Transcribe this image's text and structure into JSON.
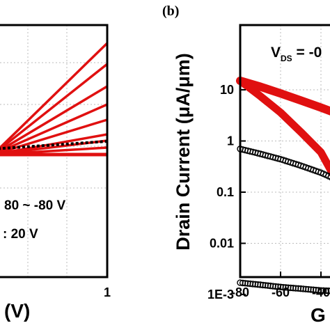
{
  "chart_data": [
    {
      "panel_label": "",
      "type": "line",
      "xlabel": "(V)",
      "ylabel": "",
      "x_ticks": [
        "1"
      ],
      "xlim": [
        0,
        1
      ],
      "ylim": [
        0,
        1
      ],
      "grid": true,
      "annotations": [
        "80 ~ -80 V",
        ": 20 V"
      ],
      "colors": {
        "curves": "#e01010",
        "dotted": "#000000"
      },
      "series": [
        {
          "name": "",
          "x": [
            0,
            1
          ],
          "y": [
            0.9,
            1.62
          ]
        },
        {
          "name": "",
          "x": [
            0,
            1
          ],
          "y": [
            0.9,
            1.38
          ]
        },
        {
          "name": "",
          "x": [
            0,
            1
          ],
          "y": [
            0.9,
            1.15
          ]
        },
        {
          "name": "",
          "x": [
            0,
            1
          ],
          "y": [
            0.9,
            0.96
          ]
        },
        {
          "name": "",
          "x": [
            0,
            1
          ],
          "y": [
            0.9,
            0.73
          ]
        },
        {
          "name": "",
          "x": [
            0,
            1
          ],
          "y": [
            0.9,
            0.56
          ]
        },
        {
          "name": "",
          "x": [
            0,
            1
          ],
          "y": [
            0.9,
            0.42
          ]
        },
        {
          "name": "",
          "x": [
            0,
            1
          ],
          "y": [
            0.9,
            0.29
          ]
        },
        {
          "name": "",
          "x": [
            0,
            1
          ],
          "y": [
            0.9,
            0.1
          ]
        }
      ]
    },
    {
      "panel_label": "(b)",
      "type": "line",
      "xlabel": "G",
      "ylabel": "Drain Current (μA/μm)",
      "vds_label": {
        "main": "V",
        "sub": "DS",
        "rest": " = -0"
      },
      "y_scale": "log",
      "x_ticks": [
        "-80",
        "-60",
        "-40"
      ],
      "y_ticks": [
        "10",
        "1",
        "0.1",
        "0.01",
        "1E-3"
      ],
      "xlim": [
        -80,
        -30
      ],
      "ylim": [
        0.0007,
        50
      ],
      "grid": true,
      "colors": {
        "red": "#e01010",
        "markers": "#000000"
      },
      "series": [
        {
          "name": "",
          "style": "red-thick",
          "x": [
            -80,
            -70,
            -60,
            -50,
            -40,
            -30
          ],
          "y": [
            15,
            11.5,
            8.5,
            6.2,
            4.5,
            3.2
          ]
        },
        {
          "name": "",
          "style": "red-thick",
          "x": [
            -80,
            -70,
            -60,
            -50,
            -40,
            -32
          ],
          "y": [
            15,
            7.5,
            3.6,
            1.5,
            0.6,
            0.16
          ]
        },
        {
          "name": "",
          "style": "open-circles",
          "x": [
            -80,
            -70,
            -60,
            -50,
            -40,
            -30
          ],
          "y": [
            0.7,
            0.56,
            0.44,
            0.33,
            0.24,
            0.16
          ]
        },
        {
          "name": "",
          "style": "open-circles",
          "x": [
            -80,
            -70,
            -60,
            -50,
            -40,
            -30
          ],
          "y": [
            0.0017,
            0.00155,
            0.0014,
            0.0013,
            0.0012,
            0.00115
          ]
        }
      ]
    }
  ]
}
